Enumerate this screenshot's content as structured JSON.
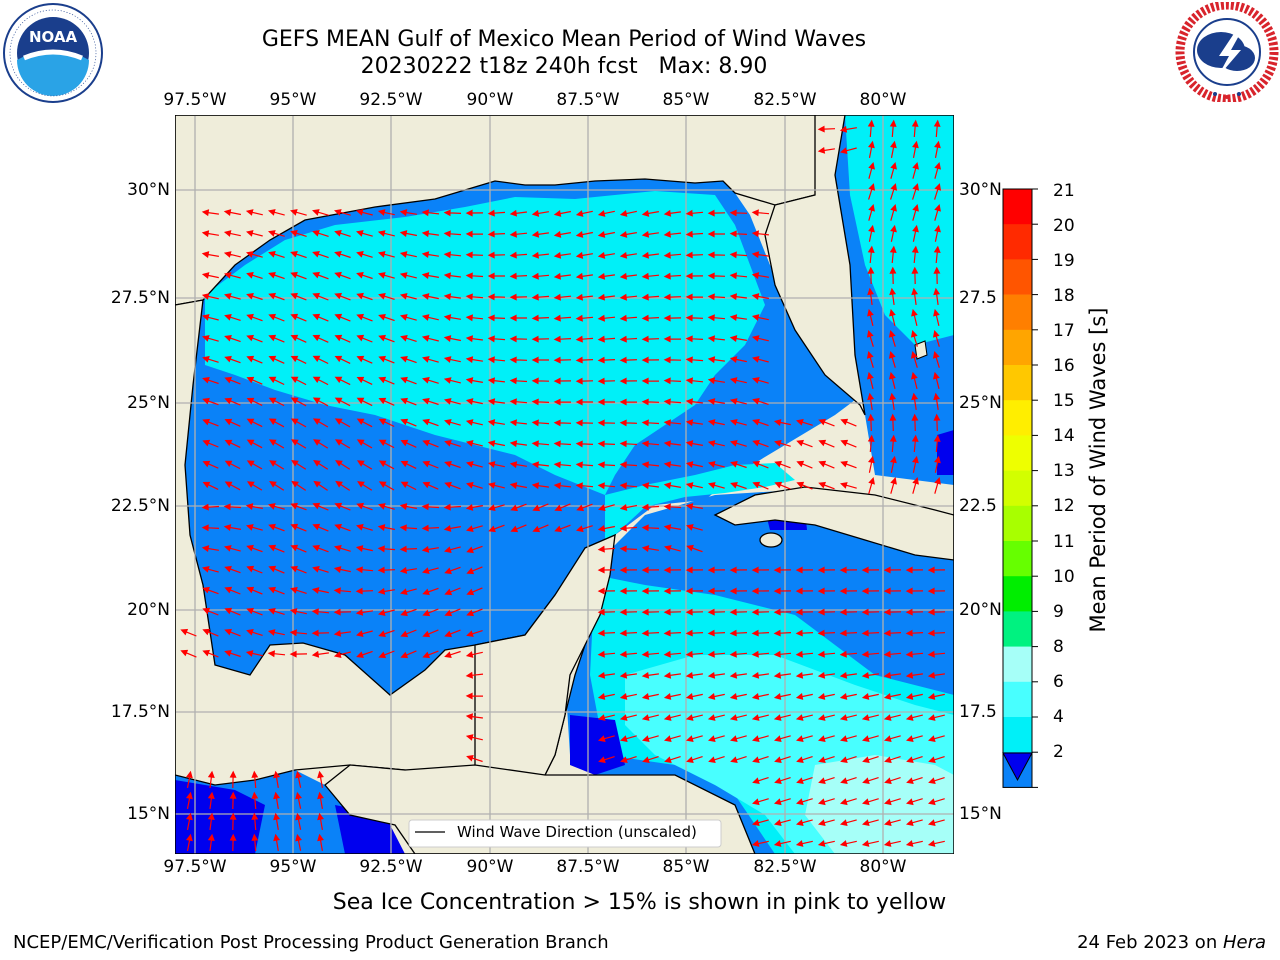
{
  "header": {
    "title_line1": "GEFS MEAN Gulf of Mexico Mean Period of Wind Waves",
    "title_line2": "20230222 t18z 240h fcst   Max: 8.90"
  },
  "logos": {
    "left": {
      "name": "NOAA",
      "ring_text": "NATIONAL OCEANIC AND ATMOSPHERIC ADMINISTRATION",
      "ring_text_bottom": "U.S. DEPARTMENT OF COMMERCE"
    },
    "right": {
      "name": "NATIONAL WEATHER SERVICE",
      "ring_text": "NATIONAL WEATHER SERVICE"
    }
  },
  "map": {
    "lon_ticks_top": [
      "97.5°W",
      "95°W",
      "92.5°W",
      "90°W",
      "87.5°W",
      "85°W",
      "82.5°W",
      "80°W"
    ],
    "lon_ticks_bottom": [
      "97.5°W",
      "95°W",
      "92.5°W",
      "90°W",
      "87.5°W",
      "85°W",
      "82.5°W",
      "80°W"
    ],
    "lat_ticks_left": [
      "30°N",
      "27.5°N",
      "25°N",
      "22.5°N",
      "20°N",
      "17.5°N",
      "15°N"
    ],
    "lat_ticks_right": [
      "30°N",
      "27.5",
      "25°N",
      "22.5",
      "20°N",
      "17.5",
      "15°N"
    ],
    "legend_label": "Wind Wave Direction (unscaled)",
    "colors": {
      "land": "#efedda",
      "sea_dark": "#0000ee",
      "sea_2_4": "#0a82f8",
      "sea_4_6": "#00f0f8",
      "sea_6_8": "#48ffff",
      "sea_8_9": "#a6fff8",
      "arrows": "#ff0000",
      "grid": "#b0b0b0"
    }
  },
  "colorbar": {
    "label": "Mean Period of Wind Waves [s]",
    "tick_labels": [
      "21",
      "20",
      "19",
      "18",
      "17",
      "16",
      "15",
      "14",
      "13",
      "12",
      "11",
      "10",
      "9",
      "8",
      "6",
      "4",
      "2"
    ],
    "colors": [
      "#ff0000",
      "#ff2a00",
      "#ff5500",
      "#ff7f00",
      "#ffa500",
      "#ffc800",
      "#ffee00",
      "#eeff00",
      "#d2ff00",
      "#a8ff00",
      "#66ff00",
      "#00ee00",
      "#00f280",
      "#a6fff8",
      "#48ffff",
      "#00f0f8",
      "#0a82f8"
    ],
    "extend_color": "#0000ee"
  },
  "notes": {
    "sea_ice": "Sea Ice Concentration > 15% is shown in pink to yellow"
  },
  "footer": {
    "left": "NCEP/EMC/Verification Post Processing Product Generation Branch",
    "right_date": "24 Feb 2023 on ",
    "right_host": "Hera"
  }
}
